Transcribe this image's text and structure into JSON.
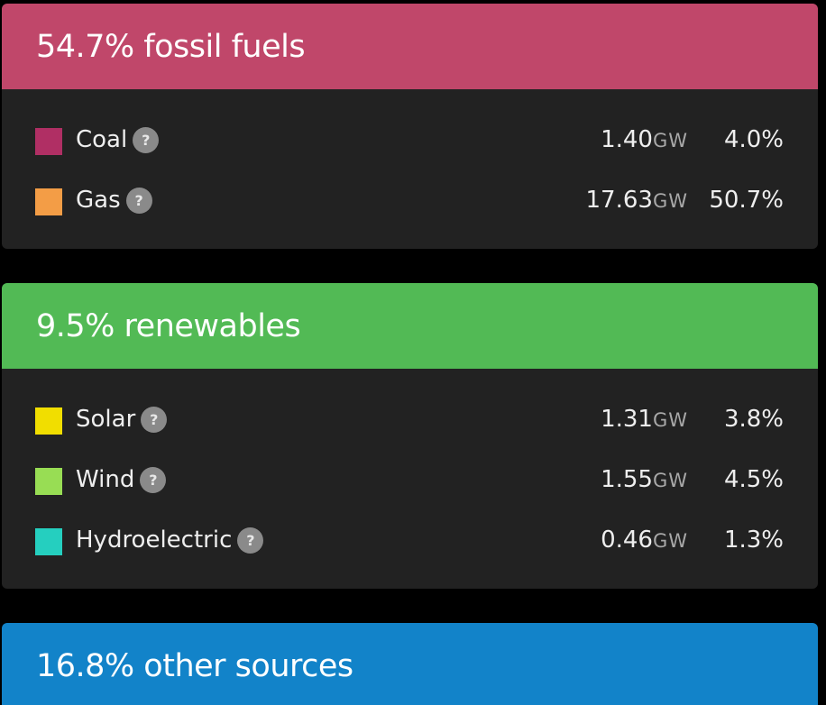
{
  "colors": {
    "fossil_header": "#c0476a",
    "renewables_header": "#52ba55",
    "other_header": "#1283c9",
    "coal": "#b02f64",
    "gas": "#f39d46",
    "solar": "#f1de00",
    "wind": "#98dd54",
    "hydroelectric": "#25cfbf"
  },
  "icons": {
    "help": "question-circle-icon"
  },
  "fossil": {
    "title": "54.7% fossil fuels",
    "rows": [
      {
        "name": "Coal",
        "help": "?",
        "value": "1.40",
        "unit": "GW",
        "percent": "4.0%"
      },
      {
        "name": "Gas",
        "help": "?",
        "value": "17.63",
        "unit": "GW",
        "percent": "50.7%"
      }
    ]
  },
  "renewables": {
    "title": "9.5% renewables",
    "rows": [
      {
        "name": "Solar",
        "help": "?",
        "value": "1.31",
        "unit": "GW",
        "percent": "3.8%"
      },
      {
        "name": "Wind",
        "help": "?",
        "value": "1.55",
        "unit": "GW",
        "percent": "4.5%"
      },
      {
        "name": "Hydroelectric",
        "help": "?",
        "value": "0.46",
        "unit": "GW",
        "percent": "1.3%"
      }
    ]
  },
  "other": {
    "title": "16.8% other sources"
  }
}
